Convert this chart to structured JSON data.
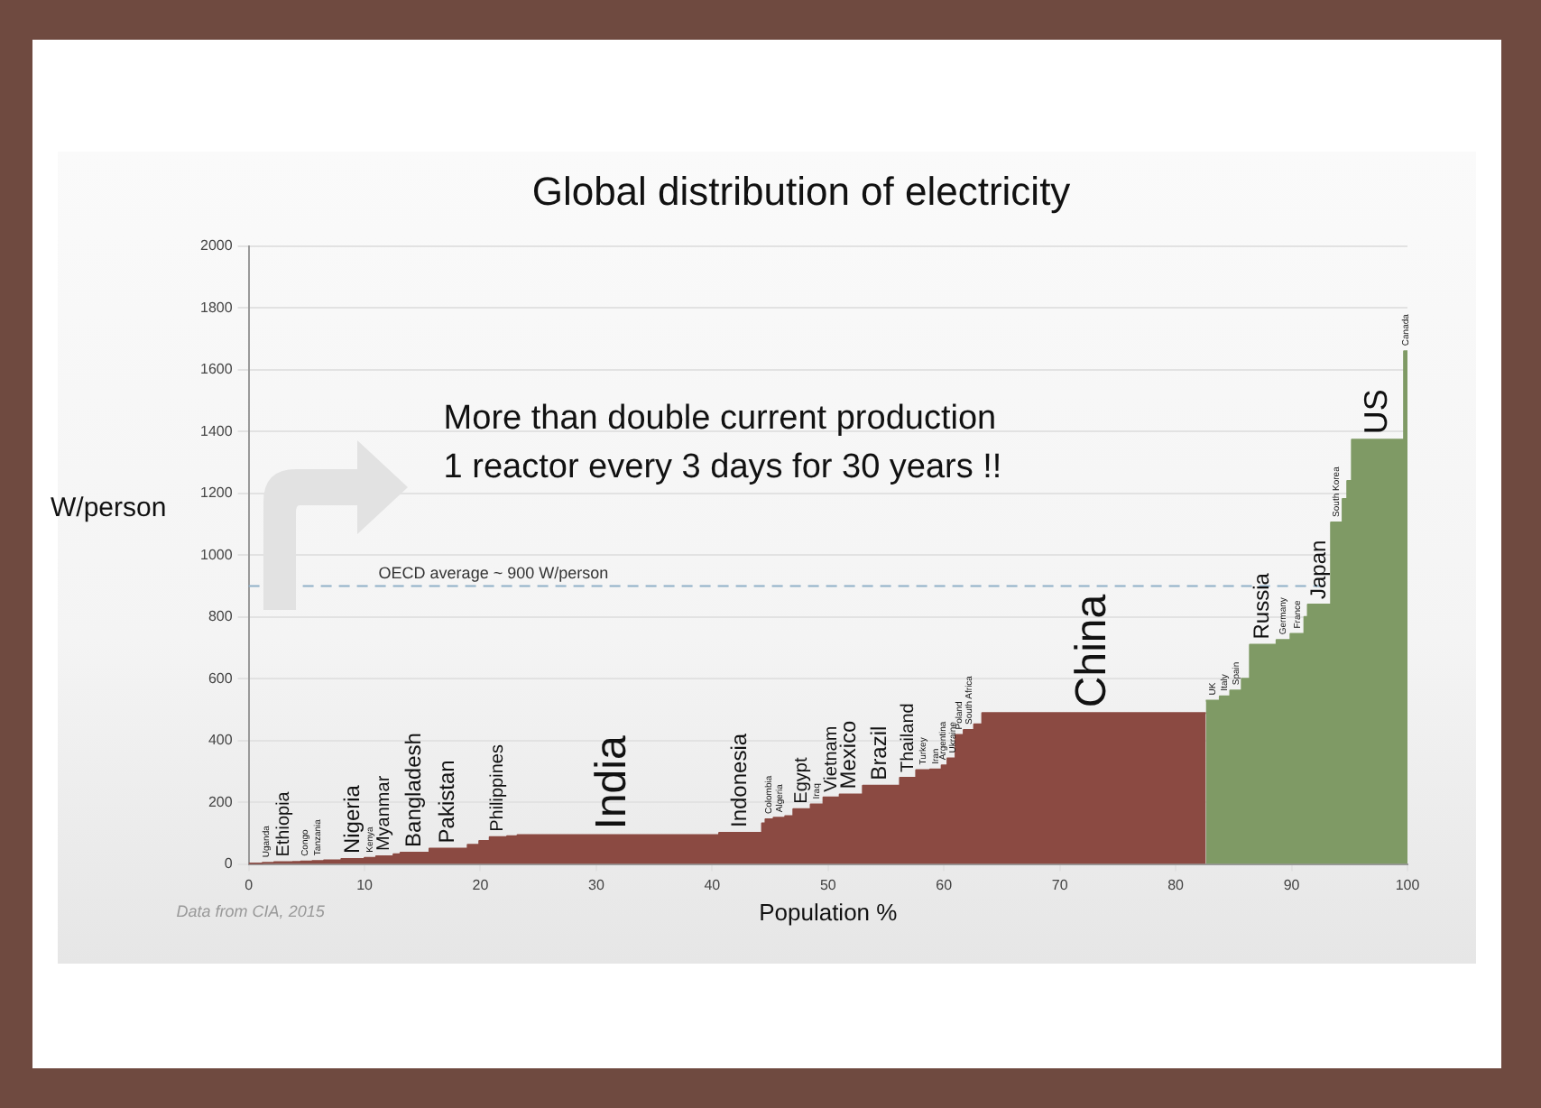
{
  "chart_data": {
    "type": "area",
    "title": "Global distribution of electricity",
    "xlabel": "Population %",
    "ylabel": "W/person",
    "xlim": [
      0,
      100
    ],
    "xticks": [
      0,
      10,
      20,
      30,
      40,
      50,
      60,
      70,
      80,
      90,
      100
    ],
    "ylim": [
      0,
      2000
    ],
    "yticks": [
      0,
      200,
      400,
      600,
      800,
      1000,
      1200,
      1400,
      1600,
      1800,
      2000
    ],
    "grid": "y",
    "marker": "none",
    "series": [
      {
        "color": "#8b4a42",
        "x": [
          0,
          1.2,
          1.2,
          2.2,
          2.2,
          3.8,
          3.8,
          4.5,
          4.5,
          5.5,
          5.5,
          6.5,
          6.5,
          8,
          8,
          10,
          10,
          11,
          11,
          12.5,
          12.5,
          13.1,
          13.1,
          15.6,
          15.6,
          18.9,
          18.9,
          19.9,
          19.9,
          20.8,
          20.8,
          22.3,
          22.3,
          23.2,
          23.2,
          40.6,
          40.6,
          44.3,
          44.3,
          44.6,
          44.6,
          45.3,
          45.3,
          46.3,
          46.3,
          47,
          47,
          48.5,
          48.5,
          49.6,
          49.6,
          51,
          51,
          53,
          53,
          56.2,
          56.2,
          57.6,
          57.6,
          58.8,
          58.8,
          59.8,
          59.8,
          60.3,
          60.3,
          61,
          61,
          61.7,
          61.7,
          62.6,
          62.6,
          63.3,
          63.3,
          82.6
        ],
        "values": [
          2,
          2,
          4,
          4,
          6,
          6,
          7,
          7,
          8,
          8,
          10,
          10,
          12,
          12,
          16,
          16,
          20,
          20,
          25,
          25,
          32,
          32,
          37,
          37,
          50,
          50,
          62,
          62,
          75,
          75,
          87,
          87,
          90,
          90,
          94,
          94,
          101,
          101,
          132,
          132,
          145,
          145,
          150,
          150,
          155,
          155,
          178,
          178,
          193,
          193,
          216,
          216,
          225,
          225,
          254,
          254,
          279,
          279,
          304,
          304,
          306,
          306,
          319,
          319,
          342,
          342,
          418,
          418,
          434,
          434,
          452,
          452,
          489,
          489
        ]
      },
      {
        "color": "#7f9a65",
        "x": [
          82.6,
          83.8,
          83.8,
          84.7,
          84.7,
          85.7,
          85.7,
          86.4,
          86.4,
          88.7,
          88.7,
          89.9,
          89.9,
          91.1,
          91.1,
          91.4,
          91.4,
          93.4,
          93.4,
          94.4,
          94.4,
          94.8,
          94.8,
          95.2,
          95.2,
          99.7,
          99.7,
          100
        ],
        "values": [
          529,
          529,
          543,
          543,
          562,
          562,
          600,
          600,
          710,
          710,
          725,
          725,
          745,
          745,
          800,
          800,
          840,
          840,
          1106,
          1106,
          1182,
          1182,
          1240,
          1240,
          1374,
          1374,
          1660,
          1660
        ]
      }
    ],
    "ref_lines": [
      {
        "axis": "y",
        "value": 900,
        "label": "OECD average ~ 900 W/person",
        "color": "#8fb0c8",
        "line_style": "dashed"
      }
    ],
    "annotations": [
      "More than double current production\n1 reactor every 3 days for 30 years !!",
      {
        "text": "Uganda",
        "x": 1.5,
        "y": 4
      },
      {
        "text": "Ethiopia",
        "x": 3,
        "y": 6
      },
      {
        "text": "Congo",
        "x": 4.9,
        "y": 8
      },
      {
        "text": "Tanzania",
        "x": 6,
        "y": 10
      },
      {
        "text": "Nigeria",
        "x": 9,
        "y": 16
      },
      {
        "text": "Kenya",
        "x": 10.5,
        "y": 20
      },
      {
        "text": "Myanmar",
        "x": 11.7,
        "y": 25
      },
      {
        "text": "Bangladesh",
        "x": 14.3,
        "y": 37
      },
      {
        "text": "Pakistan",
        "x": 17.2,
        "y": 50
      },
      {
        "text": "Philippines",
        "x": 21.5,
        "y": 87
      },
      {
        "text": "India",
        "x": 31.5,
        "y": 94
      },
      {
        "text": "Indonesia",
        "x": 42.4,
        "y": 101
      },
      {
        "text": "Colombia",
        "x": 44.9,
        "y": 145
      },
      {
        "text": "Algeria",
        "x": 45.8,
        "y": 150
      },
      {
        "text": "Egypt",
        "x": 47.7,
        "y": 178
      },
      {
        "text": "Iraq",
        "x": 49,
        "y": 193
      },
      {
        "text": "Vietnam",
        "x": 50.3,
        "y": 216
      },
      {
        "text": "Mexico",
        "x": 51.8,
        "y": 225
      },
      {
        "text": "Brazil",
        "x": 54.5,
        "y": 254
      },
      {
        "text": "Thailand",
        "x": 56.9,
        "y": 279
      },
      {
        "text": "Turkey",
        "x": 58.2,
        "y": 304
      },
      {
        "text": "Iran",
        "x": 59.3,
        "y": 306
      },
      {
        "text": "Argentina",
        "x": 59.9,
        "y": 319
      },
      {
        "text": "Ukraine",
        "x": 60.75,
        "y": 342
      },
      {
        "text": "Poland",
        "x": 61.35,
        "y": 418
      },
      {
        "text": "South Africa",
        "x": 62.15,
        "y": 434
      },
      {
        "text": "China",
        "x": 72.9,
        "y": 489
      },
      {
        "text": "UK",
        "x": 83.2,
        "y": 529
      },
      {
        "text": "Italy",
        "x": 84.25,
        "y": 543
      },
      {
        "text": "Spain",
        "x": 85.2,
        "y": 562
      },
      {
        "text": "Russia",
        "x": 87.5,
        "y": 710
      },
      {
        "text": "Germany",
        "x": 89.3,
        "y": 725
      },
      {
        "text": "France",
        "x": 90.5,
        "y": 745
      },
      {
        "text": "Japan",
        "x": 92.4,
        "y": 840
      },
      {
        "text": "South Korea",
        "x": 93.9,
        "y": 1106
      },
      {
        "text": "US",
        "x": 97.4,
        "y": 1374
      },
      {
        "text": "Canada",
        "x": 99.85,
        "y": 1660
      },
      "Data from CIA, 2015"
    ]
  }
}
